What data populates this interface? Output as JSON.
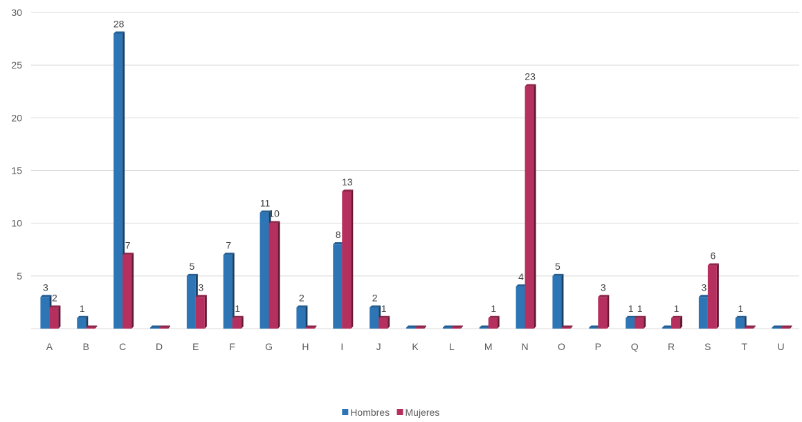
{
  "chart_data": {
    "type": "bar",
    "categories": [
      "A",
      "B",
      "C",
      "D",
      "E",
      "F",
      "G",
      "H",
      "I",
      "J",
      "K",
      "L",
      "M",
      "N",
      "O",
      "P",
      "Q",
      "R",
      "S",
      "T",
      "U"
    ],
    "series": [
      {
        "name": "Hombres",
        "color": "#2E75B6",
        "values": [
          3,
          1,
          28,
          0,
          5,
          7,
          11,
          2,
          8,
          2,
          0,
          0,
          0,
          4,
          5,
          0,
          1,
          0,
          3,
          1,
          0
        ]
      },
      {
        "name": "Mujeres",
        "color": "#B5305F",
        "values": [
          2,
          0,
          7,
          0,
          3,
          1,
          10,
          0,
          13,
          1,
          0,
          0,
          1,
          23,
          0,
          3,
          1,
          1,
          6,
          0,
          0
        ]
      }
    ],
    "data_labels": {
      "Hombres": [
        "3",
        "1",
        "28",
        "",
        "5",
        "7",
        "11",
        "2",
        "8",
        "2",
        "",
        "",
        "",
        "4",
        "5",
        "",
        "1",
        "",
        "3",
        "1",
        ""
      ],
      "Mujeres": [
        "2",
        "",
        "7",
        "",
        "3",
        "1",
        "10",
        "",
        "13",
        "1",
        "",
        "",
        "1",
        "23",
        "",
        "3",
        "1",
        "1",
        "6",
        "",
        ""
      ]
    },
    "yticks": [
      "",
      "5",
      "10",
      "15",
      "20",
      "25",
      "30"
    ],
    "ylim": [
      0,
      30
    ],
    "grid": true,
    "legend_position": "bottom",
    "title": "",
    "xlabel": "",
    "ylabel": ""
  }
}
